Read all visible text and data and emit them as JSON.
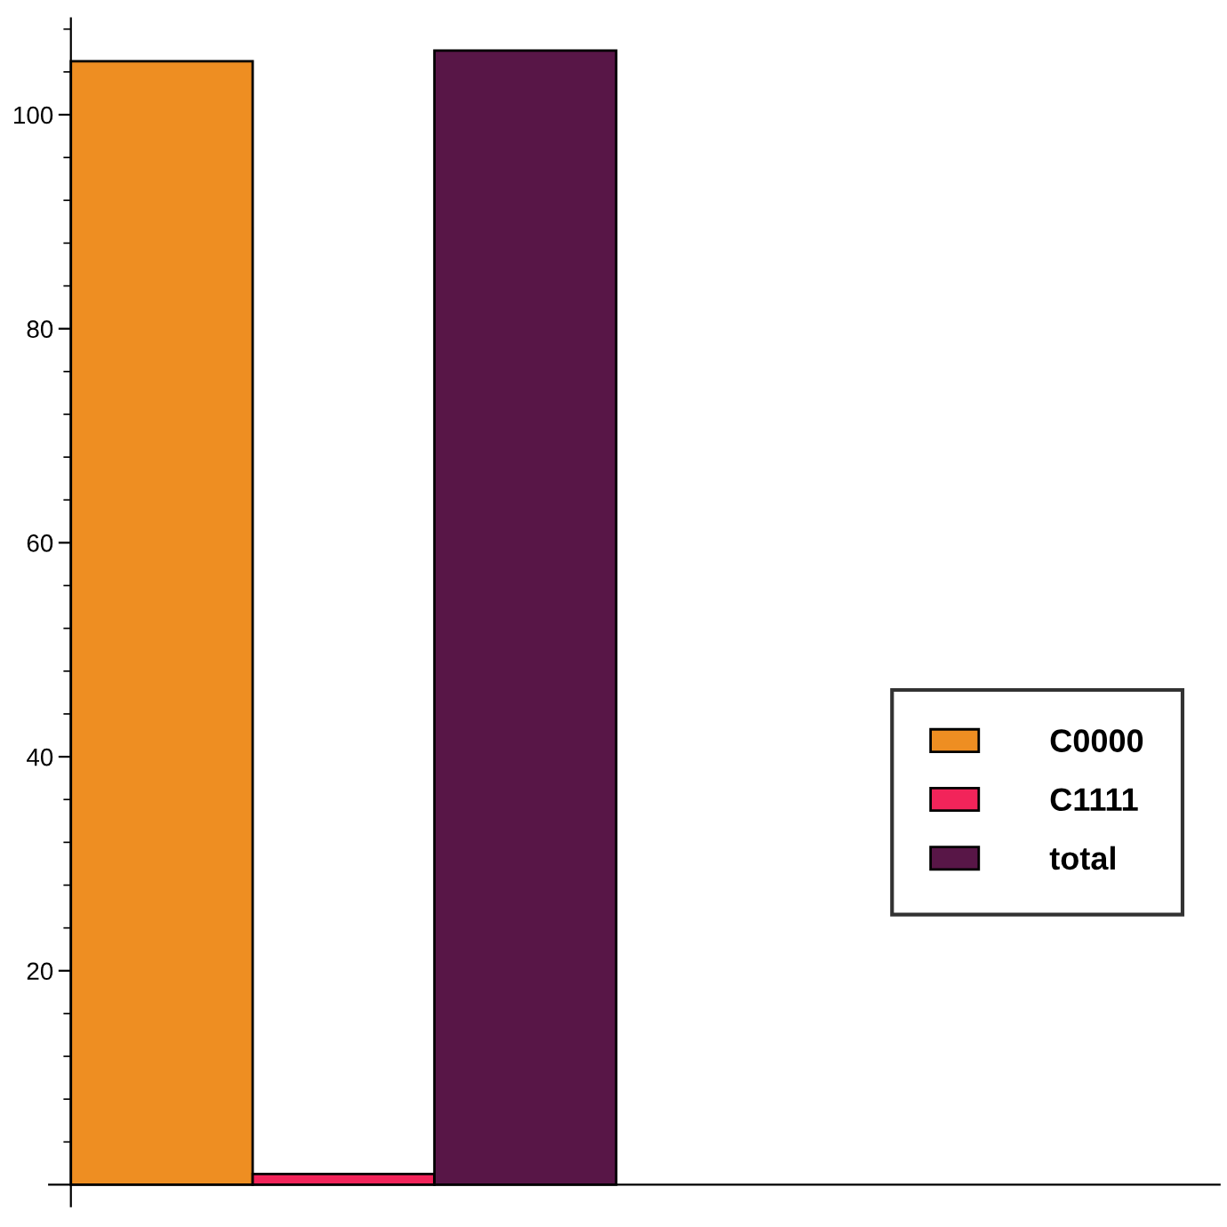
{
  "chart_data": {
    "type": "bar",
    "categories": [
      null
    ],
    "series": [
      {
        "name": "C0000",
        "color": "#ee8e22",
        "values": [
          105
        ]
      },
      {
        "name": "C1111",
        "color": "#f2245a",
        "values": [
          1
        ]
      },
      {
        "name": "total",
        "color": "#581647",
        "values": [
          106
        ]
      }
    ],
    "ylim": [
      -2,
      109
    ],
    "yticks": [
      {
        "value": 4,
        "label": null
      },
      {
        "value": 8,
        "label": null
      },
      {
        "value": 12,
        "label": null
      },
      {
        "value": 16,
        "label": null
      },
      20,
      {
        "value": 24,
        "label": null
      },
      {
        "value": 28,
        "label": null
      },
      {
        "value": 32,
        "label": null
      },
      {
        "value": 36,
        "label": null
      },
      40,
      {
        "value": 44,
        "label": null
      },
      {
        "value": 48,
        "label": null
      },
      {
        "value": 52,
        "label": null
      },
      {
        "value": 56,
        "label": null
      },
      60,
      {
        "value": 64,
        "label": null
      },
      {
        "value": 68,
        "label": null
      },
      {
        "value": 72,
        "label": null
      },
      {
        "value": 76,
        "label": null
      },
      80,
      {
        "value": 84,
        "label": null
      },
      {
        "value": 88,
        "label": null
      },
      {
        "value": 92,
        "label": null
      },
      {
        "value": 96,
        "label": null
      },
      100,
      {
        "value": 104,
        "label": null
      },
      {
        "value": 108,
        "label": null
      }
    ],
    "grid": false,
    "legend": "right"
  }
}
